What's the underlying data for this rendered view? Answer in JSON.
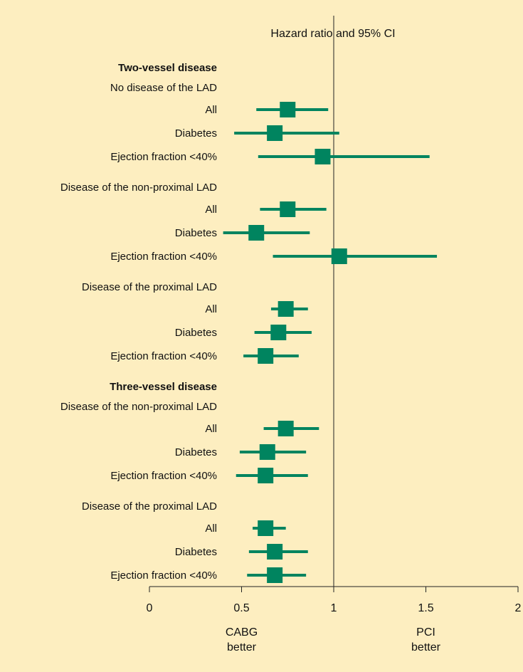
{
  "chart_data": {
    "type": "forest",
    "title": "Hazard ratio and 95% CI",
    "xlim": [
      0,
      2
    ],
    "xticks": [
      "0",
      "0.5",
      "1",
      "1.5",
      "2"
    ],
    "reference_line": 1,
    "left_note": [
      "CABG",
      "better"
    ],
    "right_note": [
      "PCI",
      "better"
    ],
    "marker_color": "#00845f",
    "rows": [
      {
        "kind": "header",
        "text": "Two-vessel disease"
      },
      {
        "kind": "group",
        "text": "No disease of the LAD"
      },
      {
        "kind": "estimate",
        "text": "All",
        "hr": 0.75,
        "lo": 0.58,
        "hi": 0.97
      },
      {
        "kind": "estimate",
        "text": "Diabetes",
        "hr": 0.68,
        "lo": 0.46,
        "hi": 1.03
      },
      {
        "kind": "estimate",
        "text": "Ejection fraction <40%",
        "hr": 0.94,
        "lo": 0.59,
        "hi": 1.52
      },
      {
        "kind": "group",
        "text": "Disease of the non-proximal LAD"
      },
      {
        "kind": "estimate",
        "text": "All",
        "hr": 0.75,
        "lo": 0.6,
        "hi": 0.96
      },
      {
        "kind": "estimate",
        "text": "Diabetes",
        "hr": 0.58,
        "lo": 0.4,
        "hi": 0.87
      },
      {
        "kind": "estimate",
        "text": "Ejection fraction <40%",
        "hr": 1.03,
        "lo": 0.67,
        "hi": 1.56
      },
      {
        "kind": "group",
        "text": "Disease of the proximal LAD"
      },
      {
        "kind": "estimate",
        "text": "All",
        "hr": 0.74,
        "lo": 0.66,
        "hi": 0.86
      },
      {
        "kind": "estimate",
        "text": "Diabetes",
        "hr": 0.7,
        "lo": 0.57,
        "hi": 0.88
      },
      {
        "kind": "estimate",
        "text": "Ejection fraction <40%",
        "hr": 0.63,
        "lo": 0.51,
        "hi": 0.81
      },
      {
        "kind": "header",
        "text": "Three-vessel disease"
      },
      {
        "kind": "group",
        "text": "Disease of the non-proximal LAD"
      },
      {
        "kind": "estimate",
        "text": "All",
        "hr": 0.74,
        "lo": 0.62,
        "hi": 0.92
      },
      {
        "kind": "estimate",
        "text": "Diabetes",
        "hr": 0.64,
        "lo": 0.49,
        "hi": 0.85
      },
      {
        "kind": "estimate",
        "text": "Ejection fraction <40%",
        "hr": 0.63,
        "lo": 0.47,
        "hi": 0.86
      },
      {
        "kind": "group",
        "text": "Disease of the proximal LAD"
      },
      {
        "kind": "estimate",
        "text": "All",
        "hr": 0.63,
        "lo": 0.56,
        "hi": 0.74
      },
      {
        "kind": "estimate",
        "text": "Diabetes",
        "hr": 0.68,
        "lo": 0.54,
        "hi": 0.86
      },
      {
        "kind": "estimate",
        "text": "Ejection fraction <40%",
        "hr": 0.68,
        "lo": 0.53,
        "hi": 0.85
      }
    ]
  }
}
